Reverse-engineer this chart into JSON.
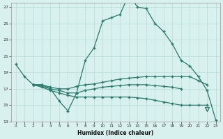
{
  "xlabel": "Humidex (Indice chaleur)",
  "x": [
    0,
    1,
    2,
    3,
    4,
    5,
    6,
    7,
    8,
    9,
    10,
    11,
    12,
    13,
    14,
    15,
    16,
    17,
    18,
    19,
    20,
    21,
    22,
    23
  ],
  "line1": [
    20.0,
    18.5,
    17.5,
    17.5,
    17.0,
    15.5,
    14.3,
    16.5,
    20.5,
    22.0,
    25.3,
    25.7,
    26.1,
    28.5,
    27.0,
    26.8,
    25.0,
    24.0,
    22.5,
    20.5,
    19.8,
    18.5,
    16.8,
    13.2
  ],
  "line2_x": [
    2,
    3,
    4,
    5,
    6,
    7,
    8,
    9,
    10,
    11,
    12,
    13,
    14,
    15,
    16,
    17,
    18,
    19,
    20,
    21,
    22
  ],
  "line2_y": [
    17.5,
    17.5,
    17.2,
    17.0,
    17.0,
    17.3,
    17.5,
    17.6,
    17.8,
    18.0,
    18.2,
    18.3,
    18.4,
    18.5,
    18.5,
    18.5,
    18.5,
    18.5,
    18.5,
    18.0,
    17.5
  ],
  "line3_x": [
    2,
    3,
    4,
    5,
    6,
    7,
    8,
    9,
    10,
    11,
    12,
    13,
    14,
    15,
    16,
    17,
    18,
    19,
    20,
    21,
    22
  ],
  "line3_y": [
    17.5,
    17.2,
    16.8,
    16.5,
    16.2,
    16.0,
    16.0,
    16.0,
    16.0,
    16.0,
    16.0,
    16.0,
    15.9,
    15.8,
    15.6,
    15.4,
    15.2,
    15.0,
    15.0,
    15.0,
    15.0
  ],
  "line4_x": [
    2,
    3,
    4,
    5,
    6,
    7,
    8,
    9,
    10,
    11,
    12,
    13,
    14,
    15,
    16,
    17,
    18,
    19
  ],
  "line4_y": [
    17.5,
    17.3,
    17.0,
    16.8,
    16.5,
    16.5,
    16.8,
    17.0,
    17.2,
    17.3,
    17.4,
    17.5,
    17.5,
    17.5,
    17.4,
    17.3,
    17.2,
    17.0
  ],
  "triangle_x": 22,
  "triangle_y": 14.5,
  "line_color": "#2a7a6a",
  "bg_color": "#d8f0ee",
  "grid_color": "#b8dbd8",
  "ylim": [
    13,
    27.5
  ],
  "xlim": [
    -0.5,
    23.5
  ],
  "yticks": [
    13,
    15,
    17,
    19,
    21,
    23,
    25,
    27
  ],
  "xticks": [
    0,
    1,
    2,
    3,
    4,
    5,
    6,
    7,
    8,
    9,
    10,
    11,
    12,
    13,
    14,
    15,
    16,
    17,
    18,
    19,
    20,
    21,
    22,
    23
  ]
}
